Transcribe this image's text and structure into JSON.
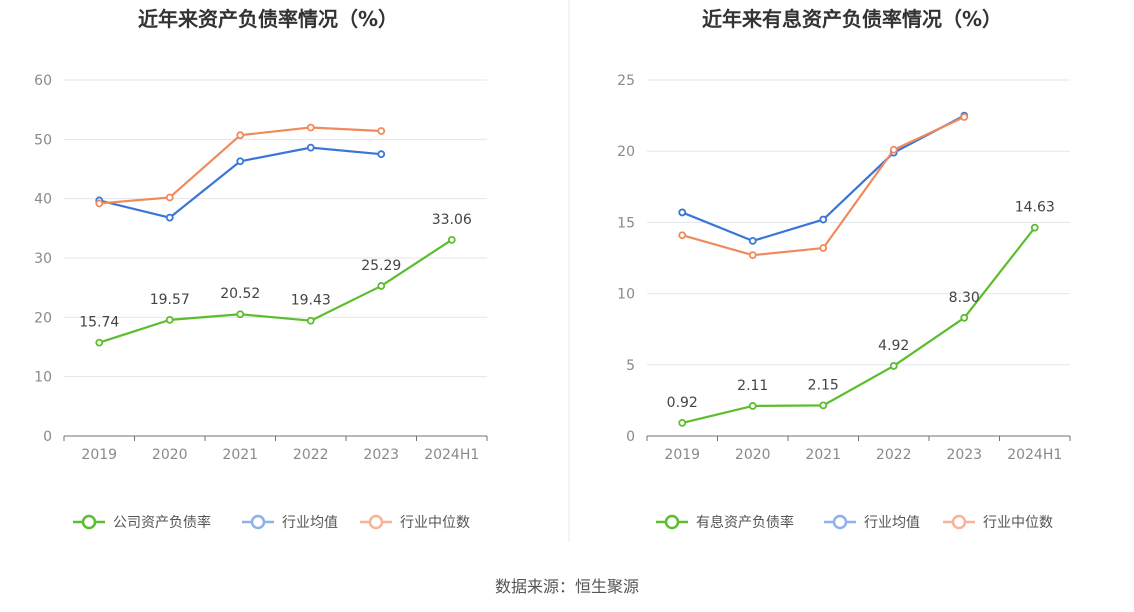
{
  "source": "数据来源：恒生聚源",
  "chart_data": [
    {
      "type": "line",
      "title": "近年来资产负债率情况（%）",
      "categories": [
        "2019",
        "2020",
        "2021",
        "2022",
        "2023",
        "2024H1"
      ],
      "ylim": [
        0,
        60
      ],
      "yticks": [
        0,
        10,
        20,
        30,
        40,
        50,
        60
      ],
      "grid": true,
      "legend_position": "bottom",
      "series": [
        {
          "name": "公司资产负债率",
          "color": "#5cbd2e",
          "values": [
            15.74,
            19.57,
            20.52,
            19.43,
            25.29,
            33.06
          ],
          "labels": [
            "15.74",
            "19.57",
            "20.52",
            "19.43",
            "25.29",
            "33.06"
          ],
          "legend_color": "#5cbd2e"
        },
        {
          "name": "行业均值",
          "color": "#3a76d8",
          "values": [
            39.7,
            36.8,
            46.3,
            48.6,
            47.5,
            null
          ],
          "legend_color": "#8fb0e8"
        },
        {
          "name": "行业中位数",
          "color": "#f08a5d",
          "values": [
            39.2,
            40.2,
            50.7,
            52.0,
            51.4,
            null
          ],
          "legend_color": "#f5b498"
        }
      ]
    },
    {
      "type": "line",
      "title": "近年来有息资产负债率情况（%）",
      "categories": [
        "2019",
        "2020",
        "2021",
        "2022",
        "2023",
        "2024H1"
      ],
      "ylim": [
        0,
        25
      ],
      "yticks": [
        0,
        5,
        10,
        15,
        20,
        25
      ],
      "grid": true,
      "legend_position": "bottom",
      "series": [
        {
          "name": "有息资产负债率",
          "color": "#5cbd2e",
          "values": [
            0.92,
            2.11,
            2.15,
            4.92,
            8.3,
            14.63
          ],
          "labels": [
            "0.92",
            "2.11",
            "2.15",
            "4.92",
            "8.30",
            "14.63"
          ],
          "legend_color": "#5cbd2e"
        },
        {
          "name": "行业均值",
          "color": "#3a76d8",
          "values": [
            15.7,
            13.7,
            15.2,
            19.9,
            22.5,
            null
          ],
          "legend_color": "#8fb0e8"
        },
        {
          "name": "行业中位数",
          "color": "#f08a5d",
          "values": [
            14.1,
            12.7,
            13.2,
            20.1,
            22.4,
            null
          ],
          "legend_color": "#f5b498"
        }
      ]
    }
  ]
}
